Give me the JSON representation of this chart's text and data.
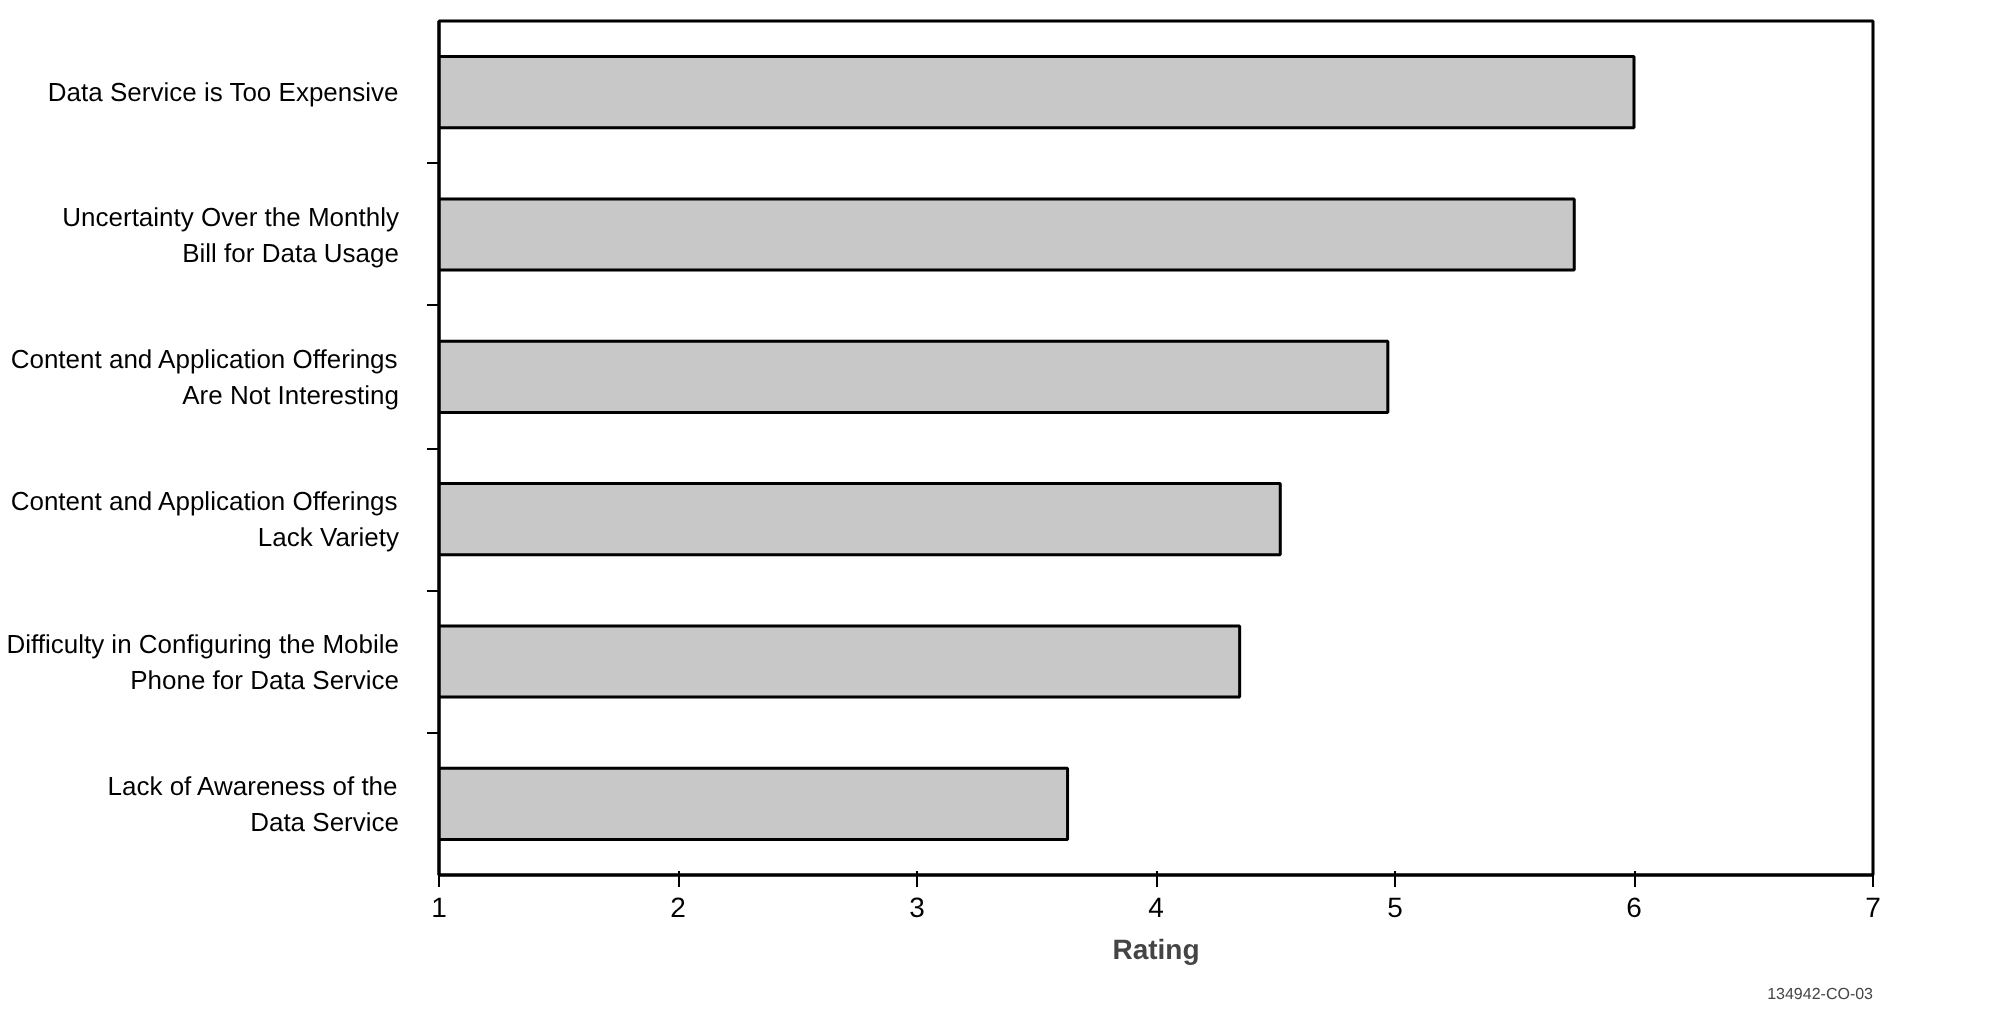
{
  "chart_data": {
    "type": "bar",
    "orientation": "horizontal",
    "categories": [
      "Data Service is Too Expensive",
      "Uncertainty Over the Monthly\nBill for Data Usage",
      "Content and Application Offerings\nAre Not Interesting",
      "Content and Application Offerings\nLack Variety",
      "Difficulty in Configuring the Mobile\nPhone for Data Service",
      "Lack of Awareness of the\nData Service"
    ],
    "values": [
      6.0,
      5.75,
      4.97,
      4.52,
      4.35,
      3.63
    ],
    "color": "#c8c8c8",
    "xlim": [
      1,
      7
    ],
    "xticks": [
      1,
      2,
      3,
      4,
      5,
      6,
      7
    ],
    "xlabel": "Rating",
    "grid": false,
    "annotations": [
      "134942-CO-03"
    ]
  }
}
